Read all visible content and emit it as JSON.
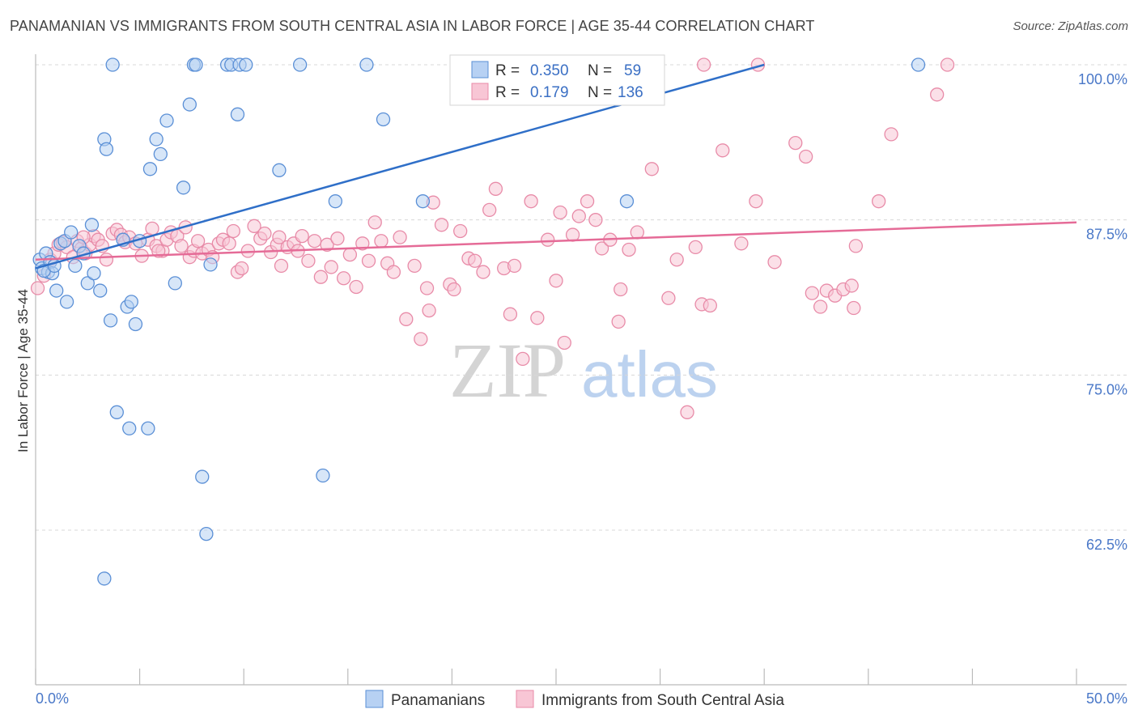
{
  "title": "PANAMANIAN VS IMMIGRANTS FROM SOUTH CENTRAL ASIA IN LABOR FORCE | AGE 35-44 CORRELATION CHART",
  "source": "Source: ZipAtlas.com",
  "watermark": {
    "zip": "ZIP",
    "atlas": "atlas"
  },
  "colors": {
    "blue_fill": "#b7d1f3",
    "blue_stroke": "#5a8fd6",
    "blue_line": "#2f6fc8",
    "pink_fill": "#f8c6d5",
    "pink_stroke": "#e88ba8",
    "pink_line": "#e56b97",
    "tick_text": "#4a78c8",
    "grid": "#d8d8d8"
  },
  "legend": {
    "rows": [
      {
        "r_label": "R =",
        "r_value": "0.350",
        "n_label": "N =",
        "n_value": "59"
      },
      {
        "r_label": "R =",
        "r_value": "0.179",
        "n_label": "N =",
        "n_value": "136"
      }
    ]
  },
  "chart_data": {
    "type": "scatter",
    "title": "PANAMANIAN VS IMMIGRANTS FROM SOUTH CENTRAL ASIA IN LABOR FORCE | AGE 35-44 CORRELATION CHART",
    "xlabel": "",
    "ylabel": "In Labor Force | Age 35-44",
    "xlim": [
      0,
      50
    ],
    "ylim": [
      50,
      101.5
    ],
    "x_tick_labels": [
      "0.0%",
      "50.0%"
    ],
    "y_ticks": [
      62.5,
      75.0,
      87.5,
      100.0
    ],
    "y_tick_labels": [
      "62.5%",
      "75.0%",
      "87.5%",
      "100.0%"
    ],
    "grid": "horizontal dashed",
    "legend_placement": "top-center",
    "series": [
      {
        "name": "Panamanians",
        "r": 0.35,
        "n": 59,
        "trend": {
          "x0": 0.0,
          "y0": 83.6,
          "x1": 35.0,
          "y1": 100.0
        },
        "points": [
          [
            0.2,
            84.3
          ],
          [
            0.3,
            83.6
          ],
          [
            0.5,
            84.8
          ],
          [
            0.6,
            83.3
          ],
          [
            0.7,
            84.1
          ],
          [
            0.8,
            83.2
          ],
          [
            0.4,
            83.4
          ],
          [
            0.9,
            83.8
          ],
          [
            1.0,
            81.8
          ],
          [
            1.2,
            85.6
          ],
          [
            1.4,
            85.8
          ],
          [
            1.5,
            80.9
          ],
          [
            1.7,
            86.5
          ],
          [
            1.9,
            83.8
          ],
          [
            2.1,
            85.4
          ],
          [
            2.3,
            84.8
          ],
          [
            2.5,
            82.4
          ],
          [
            2.7,
            87.1
          ],
          [
            2.8,
            83.2
          ],
          [
            3.1,
            81.8
          ],
          [
            3.3,
            94.0
          ],
          [
            3.4,
            93.2
          ],
          [
            3.6,
            79.4
          ],
          [
            3.7,
            100.0
          ],
          [
            3.9,
            72.0
          ],
          [
            4.2,
            85.9
          ],
          [
            4.4,
            80.5
          ],
          [
            4.5,
            70.7
          ],
          [
            4.6,
            80.9
          ],
          [
            4.8,
            79.1
          ],
          [
            5.0,
            85.8
          ],
          [
            5.4,
            70.7
          ],
          [
            5.5,
            91.6
          ],
          [
            5.8,
            94.0
          ],
          [
            6.0,
            92.8
          ],
          [
            6.3,
            95.5
          ],
          [
            6.7,
            82.4
          ],
          [
            7.1,
            90.1
          ],
          [
            7.4,
            96.8
          ],
          [
            7.6,
            100.0
          ],
          [
            7.7,
            100.0
          ],
          [
            8.0,
            66.8
          ],
          [
            8.2,
            62.2
          ],
          [
            8.4,
            83.9
          ],
          [
            9.2,
            100.0
          ],
          [
            9.4,
            100.0
          ],
          [
            9.7,
            96.0
          ],
          [
            9.8,
            100.0
          ],
          [
            10.1,
            100.0
          ],
          [
            11.7,
            91.5
          ],
          [
            12.7,
            100.0
          ],
          [
            13.8,
            66.9
          ],
          [
            14.4,
            89.0
          ],
          [
            15.9,
            100.0
          ],
          [
            16.7,
            95.6
          ],
          [
            18.6,
            89.0
          ],
          [
            28.4,
            89.0
          ],
          [
            42.4,
            100.0
          ],
          [
            3.3,
            58.6
          ]
        ]
      },
      {
        "name": "Immigrants from South Central Asia",
        "r": 0.179,
        "n": 136,
        "trend": {
          "x0": 0.0,
          "y0": 84.3,
          "x1": 50.0,
          "y1": 87.3
        },
        "points": [
          [
            0.1,
            82.0
          ],
          [
            0.4,
            83.0
          ],
          [
            0.7,
            84.3
          ],
          [
            0.9,
            84.8
          ],
          [
            1.1,
            85.5
          ],
          [
            1.3,
            85.7
          ],
          [
            1.5,
            85.3
          ],
          [
            1.8,
            84.5
          ],
          [
            2.0,
            85.8
          ],
          [
            2.2,
            85.2
          ],
          [
            2.4,
            84.8
          ],
          [
            2.6,
            85.5
          ],
          [
            2.8,
            86.2
          ],
          [
            3.0,
            85.9
          ],
          [
            3.2,
            85.4
          ],
          [
            3.4,
            84.3
          ],
          [
            3.7,
            86.4
          ],
          [
            3.9,
            86.7
          ],
          [
            4.1,
            86.3
          ],
          [
            4.3,
            85.7
          ],
          [
            4.5,
            86.1
          ],
          [
            4.8,
            85.6
          ],
          [
            5.1,
            84.6
          ],
          [
            5.4,
            85.9
          ],
          [
            5.6,
            86.8
          ],
          [
            5.8,
            85.4
          ],
          [
            6.1,
            85.0
          ],
          [
            6.3,
            85.9
          ],
          [
            6.5,
            86.5
          ],
          [
            6.8,
            86.2
          ],
          [
            7.0,
            85.4
          ],
          [
            7.2,
            86.9
          ],
          [
            7.4,
            84.5
          ],
          [
            7.6,
            85.0
          ],
          [
            7.8,
            85.8
          ],
          [
            8.0,
            84.8
          ],
          [
            8.3,
            85.1
          ],
          [
            8.5,
            84.5
          ],
          [
            8.8,
            85.6
          ],
          [
            9.0,
            85.9
          ],
          [
            9.3,
            85.6
          ],
          [
            9.5,
            86.6
          ],
          [
            9.7,
            83.3
          ],
          [
            9.9,
            83.6
          ],
          [
            10.2,
            85.0
          ],
          [
            10.5,
            87.0
          ],
          [
            10.8,
            86.0
          ],
          [
            11.0,
            86.4
          ],
          [
            11.3,
            84.9
          ],
          [
            11.6,
            85.5
          ],
          [
            11.8,
            83.8
          ],
          [
            12.1,
            85.3
          ],
          [
            12.4,
            85.6
          ],
          [
            12.6,
            85.0
          ],
          [
            12.8,
            86.2
          ],
          [
            13.1,
            84.2
          ],
          [
            13.4,
            85.8
          ],
          [
            13.7,
            82.9
          ],
          [
            14.0,
            85.5
          ],
          [
            14.2,
            83.7
          ],
          [
            14.5,
            86.0
          ],
          [
            14.8,
            82.8
          ],
          [
            15.1,
            84.7
          ],
          [
            15.4,
            82.1
          ],
          [
            15.7,
            85.6
          ],
          [
            16.0,
            84.2
          ],
          [
            16.3,
            87.3
          ],
          [
            16.6,
            85.8
          ],
          [
            16.9,
            84.0
          ],
          [
            17.2,
            83.3
          ],
          [
            17.5,
            86.1
          ],
          [
            17.8,
            79.5
          ],
          [
            18.2,
            83.8
          ],
          [
            18.5,
            77.9
          ],
          [
            18.8,
            82.0
          ],
          [
            19.1,
            88.9
          ],
          [
            19.5,
            87.1
          ],
          [
            19.9,
            82.3
          ],
          [
            20.1,
            81.9
          ],
          [
            20.4,
            86.6
          ],
          [
            20.8,
            84.4
          ],
          [
            21.1,
            84.2
          ],
          [
            21.5,
            83.3
          ],
          [
            21.8,
            88.3
          ],
          [
            22.1,
            90.0
          ],
          [
            22.5,
            83.6
          ],
          [
            23.0,
            83.8
          ],
          [
            23.4,
            76.3
          ],
          [
            23.8,
            89.0
          ],
          [
            24.1,
            79.6
          ],
          [
            24.6,
            85.9
          ],
          [
            25.0,
            82.6
          ],
          [
            25.4,
            77.6
          ],
          [
            25.8,
            86.3
          ],
          [
            26.1,
            87.8
          ],
          [
            26.5,
            89.0
          ],
          [
            26.9,
            87.5
          ],
          [
            27.2,
            85.2
          ],
          [
            27.6,
            85.9
          ],
          [
            28.1,
            81.9
          ],
          [
            28.5,
            85.1
          ],
          [
            28.9,
            86.5
          ],
          [
            29.6,
            91.6
          ],
          [
            30.4,
            81.2
          ],
          [
            30.8,
            84.3
          ],
          [
            31.3,
            72.0
          ],
          [
            31.7,
            85.3
          ],
          [
            32.0,
            80.7
          ],
          [
            32.4,
            80.6
          ],
          [
            33.0,
            93.1
          ],
          [
            33.9,
            85.6
          ],
          [
            34.6,
            89.0
          ],
          [
            35.5,
            84.1
          ],
          [
            36.5,
            93.7
          ],
          [
            37.0,
            92.6
          ],
          [
            37.3,
            81.6
          ],
          [
            37.7,
            80.5
          ],
          [
            38.0,
            81.8
          ],
          [
            38.4,
            81.4
          ],
          [
            38.8,
            81.9
          ],
          [
            39.2,
            82.2
          ],
          [
            39.3,
            80.4
          ],
          [
            39.4,
            85.4
          ],
          [
            40.5,
            89.0
          ],
          [
            41.1,
            94.4
          ],
          [
            43.3,
            97.6
          ],
          [
            43.8,
            100.0
          ],
          [
            32.1,
            100.0
          ],
          [
            34.7,
            100.0
          ],
          [
            2.3,
            86.1
          ],
          [
            5.9,
            85.0
          ],
          [
            11.7,
            86.1
          ],
          [
            18.9,
            80.2
          ],
          [
            22.8,
            79.9
          ],
          [
            25.2,
            88.1
          ],
          [
            28.0,
            79.3
          ]
        ]
      }
    ]
  },
  "bottom_legend": [
    {
      "label": "Panamanians"
    },
    {
      "label": "Immigrants from South Central Asia"
    }
  ]
}
